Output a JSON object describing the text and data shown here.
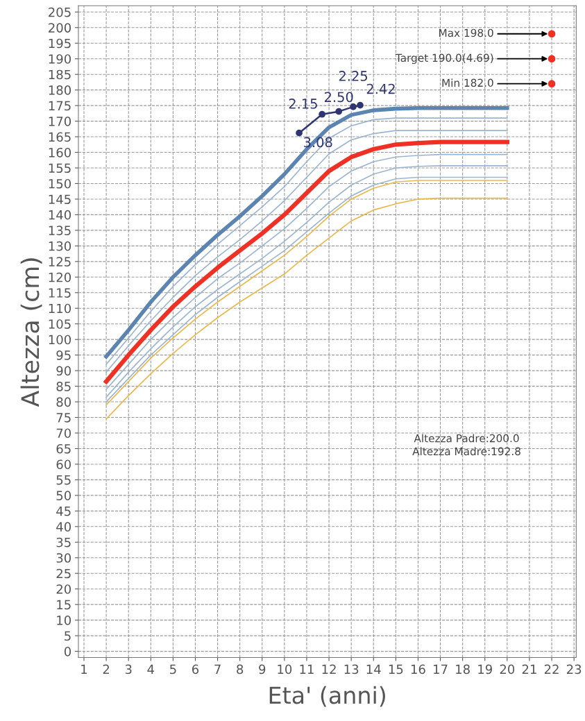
{
  "chart_data": {
    "type": "line",
    "xlabel": "Eta' (anni)",
    "ylabel": "Altezza (cm)",
    "xlim": [
      0.75,
      23.1
    ],
    "xticks": [
      1,
      2,
      3,
      4,
      5,
      6,
      7,
      8,
      9,
      10,
      11,
      12,
      13,
      14,
      15,
      16,
      17,
      18,
      19,
      20,
      21,
      22,
      23
    ],
    "ylim": [
      -2,
      207
    ],
    "yticks": [
      0,
      5,
      10,
      15,
      20,
      25,
      30,
      35,
      40,
      45,
      50,
      55,
      60,
      65,
      70,
      75,
      80,
      85,
      90,
      95,
      100,
      105,
      110,
      115,
      120,
      125,
      130,
      135,
      140,
      145,
      150,
      155,
      160,
      165,
      170,
      175,
      180,
      185,
      190,
      195,
      200,
      205
    ],
    "grid": true,
    "series": [
      {
        "type": "line",
        "color": "#5b84b1",
        "x": [
          2,
          3,
          4,
          5,
          6,
          7,
          8,
          9,
          10,
          11,
          12,
          13,
          14,
          15,
          16,
          17,
          18,
          19,
          20
        ],
        "values": [
          94.5,
          103,
          112,
          120,
          127,
          133.5,
          139.5,
          146,
          153,
          161,
          168,
          172,
          173.5,
          174,
          174.2,
          174.2,
          174.2,
          174.2,
          174.2
        ]
      },
      {
        "type": "line",
        "color": "#9bb5d0",
        "x": [
          2,
          3,
          4,
          5,
          6,
          7,
          8,
          9,
          10,
          11,
          12,
          13,
          14,
          15,
          16,
          17,
          18,
          19,
          20
        ],
        "values": [
          92,
          100.5,
          109,
          117,
          124,
          130.5,
          136.5,
          142.5,
          149,
          157,
          164.5,
          168.5,
          170.5,
          171,
          171,
          171,
          171,
          171,
          171
        ]
      },
      {
        "type": "line",
        "color": "#9bb5d0",
        "x": [
          2,
          3,
          4,
          5,
          6,
          7,
          8,
          9,
          10,
          11,
          12,
          13,
          14,
          15,
          16,
          17,
          18,
          19,
          20
        ],
        "values": [
          89.5,
          98,
          106,
          113.5,
          120.5,
          126.5,
          132,
          138,
          144.5,
          152,
          159.5,
          164,
          166,
          167,
          167,
          167,
          167,
          167,
          167
        ]
      },
      {
        "type": "line",
        "color": "#ee3124",
        "x": [
          2,
          3,
          4,
          5,
          6,
          7,
          8,
          9,
          10,
          11,
          12,
          13,
          14,
          15,
          16,
          17,
          18,
          19,
          20
        ],
        "values": [
          86.5,
          95,
          103,
          110.5,
          117,
          123,
          128.5,
          134,
          140,
          147,
          154,
          158.5,
          161,
          162.5,
          163,
          163.3,
          163.3,
          163.3,
          163.3
        ]
      },
      {
        "type": "line",
        "color": "#9bb5d0",
        "x": [
          2,
          3,
          4,
          5,
          6,
          7,
          8,
          9,
          10,
          11,
          12,
          13,
          14,
          15,
          16,
          17,
          18,
          19,
          20
        ],
        "values": [
          84,
          92,
          100,
          107,
          113.5,
          119.5,
          124.5,
          130,
          135.5,
          142,
          149,
          154,
          157,
          158.5,
          159,
          159.3,
          159.3,
          159.3,
          159.3
        ]
      },
      {
        "type": "line",
        "color": "#9bb5d0",
        "x": [
          2,
          3,
          4,
          5,
          6,
          7,
          8,
          9,
          10,
          11,
          12,
          13,
          14,
          15,
          16,
          17,
          18,
          19,
          20
        ],
        "values": [
          81.5,
          89.5,
          97,
          104,
          110.5,
          116,
          121,
          126,
          131.5,
          137.5,
          144,
          149.5,
          153,
          155,
          155.5,
          155.7,
          155.7,
          155.7,
          155.7
        ]
      },
      {
        "type": "line",
        "color": "#9bb5d0",
        "x": [
          2,
          3,
          4,
          5,
          6,
          7,
          8,
          9,
          10,
          11,
          12,
          13,
          14,
          15,
          16,
          17,
          18,
          19,
          20
        ],
        "values": [
          80,
          87.5,
          95,
          101.5,
          108,
          113.5,
          118.5,
          123.5,
          128.5,
          134.5,
          140.5,
          146,
          149.5,
          151.5,
          152,
          152,
          152,
          152,
          152
        ]
      },
      {
        "type": "line",
        "color": "#e8b84a",
        "x": [
          2,
          3,
          4,
          5,
          6,
          7,
          8,
          9,
          10,
          11,
          12,
          13,
          14,
          15,
          16,
          17,
          18,
          19,
          20
        ],
        "values": [
          79,
          86.5,
          94,
          100.5,
          106.5,
          112,
          117,
          122,
          127,
          133,
          139.5,
          145,
          148.5,
          150.5,
          151,
          151,
          151,
          151,
          151
        ]
      },
      {
        "type": "line",
        "color": "#e8b84a",
        "x": [
          2,
          3,
          4,
          5,
          6,
          7,
          8,
          9,
          10,
          11,
          12,
          13,
          14,
          15,
          16,
          17,
          18,
          19,
          20
        ],
        "values": [
          74.5,
          82,
          89,
          95.5,
          101.5,
          107,
          112,
          116.5,
          121,
          127,
          132.5,
          138,
          141.5,
          143.5,
          145,
          145.3,
          145.3,
          145.3,
          145.3
        ]
      },
      {
        "color": "#2e3573",
        "marker": "circle",
        "x": [
          10.66,
          11.69,
          12.44,
          13.09,
          13.4
        ],
        "values": [
          166.2,
          172.2,
          173.1,
          174.6,
          175.1
        ]
      },
      {
        "type": "scatter",
        "color": "#ee3124",
        "marker": "circle",
        "x": [
          22,
          22,
          22
        ],
        "values": [
          198,
          190,
          182
        ]
      }
    ],
    "annotations": [
      {
        "text": "3.08",
        "x": 10.66,
        "y": 166.2
      },
      {
        "text": "2.15",
        "x": 11.69,
        "y": 172.2
      },
      {
        "text": "2.50",
        "x": 12.44,
        "y": 173.1
      },
      {
        "text": "2.25",
        "x": 13.09,
        "y": 174.6
      },
      {
        "text": "2.42",
        "x": 13.4,
        "y": 175.1
      },
      {
        "text": "Max 198.0",
        "x": 22,
        "y": 198
      },
      {
        "text": "Target 190.0(4.69)",
        "x": 22,
        "y": 190
      },
      {
        "text": "Min 182.0",
        "x": 22,
        "y": 182
      },
      "Altezza Padre:200.0",
      "Altezza Madre:192.8"
    ]
  }
}
